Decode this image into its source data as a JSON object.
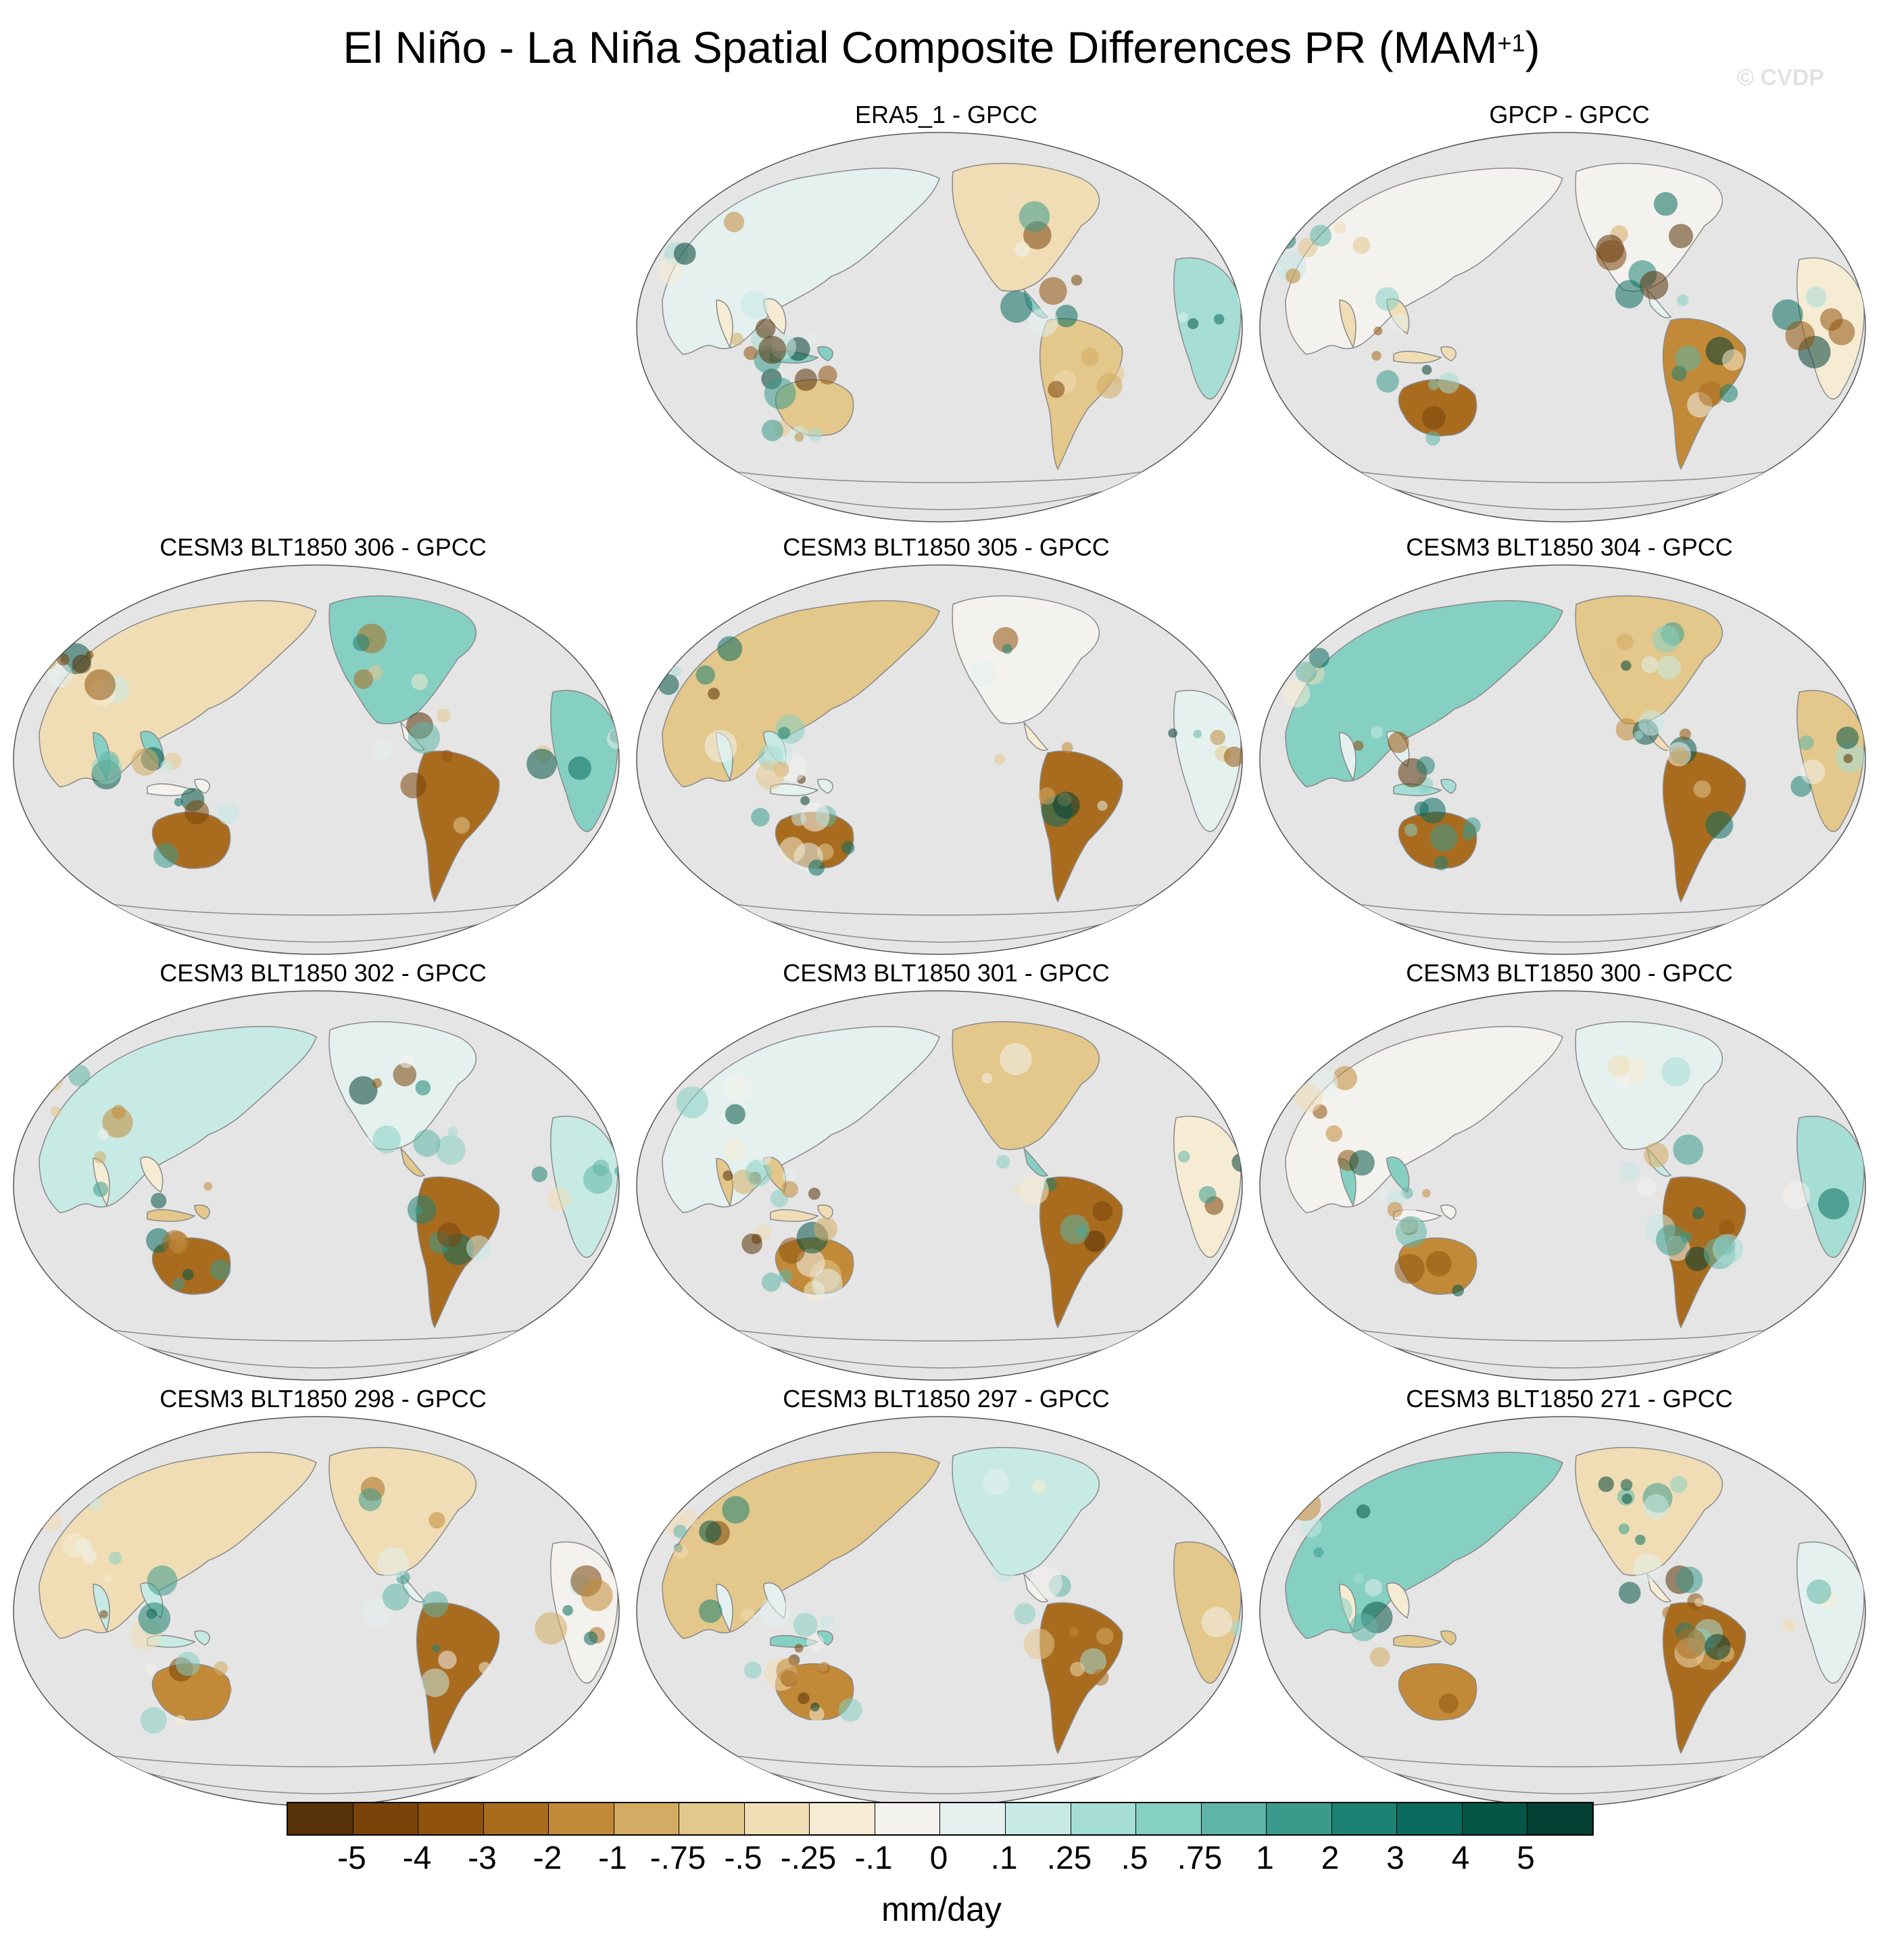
{
  "figure": {
    "title": "El Niño - La Niña Spatial Composite Differences PR (MAM",
    "title_superscript": "+1",
    "title_close": ")",
    "watermark": "© CVDP"
  },
  "panels": [
    {
      "title": "ERA5_1 - GPCC"
    },
    {
      "title": "GPCP - GPCC"
    },
    {
      "title": "CESM3 BLT1850 306 - GPCC"
    },
    {
      "title": "CESM3 BLT1850 305 - GPCC"
    },
    {
      "title": "CESM3 BLT1850 304 - GPCC"
    },
    {
      "title": "CESM3 BLT1850 302 - GPCC"
    },
    {
      "title": "CESM3 BLT1850 301 - GPCC"
    },
    {
      "title": "CESM3 BLT1850 300 - GPCC"
    },
    {
      "title": "CESM3 BLT1850 298 - GPCC"
    },
    {
      "title": "CESM3 BLT1850 297 - GPCC"
    },
    {
      "title": "CESM3 BLT1850 271 - GPCC"
    }
  ],
  "colorbar": {
    "units": "mm/day",
    "labels": [
      "-5",
      "-4",
      "-3",
      "-2",
      "-1",
      "-.75",
      "-.5",
      "-.25",
      "-.1",
      "0",
      ".1",
      ".25",
      ".5",
      ".75",
      "1",
      "2",
      "3",
      "4",
      "5"
    ],
    "colors": [
      "#573208",
      "#7a430a",
      "#8f530d",
      "#a96c1f",
      "#c28a38",
      "#d3ab62",
      "#e3c78b",
      "#f0ddb5",
      "#f6ecd4",
      "#f4f2ee",
      "#e4f1ef",
      "#c8eae5",
      "#a6ddd5",
      "#86cfc3",
      "#5fb6a8",
      "#3a9b8d",
      "#1d8173",
      "#0a6b5e",
      "#065647",
      "#033f33"
    ]
  },
  "map": {
    "ocean_color": "#e5e5e5",
    "coast_color": "#8a8a8a"
  }
}
